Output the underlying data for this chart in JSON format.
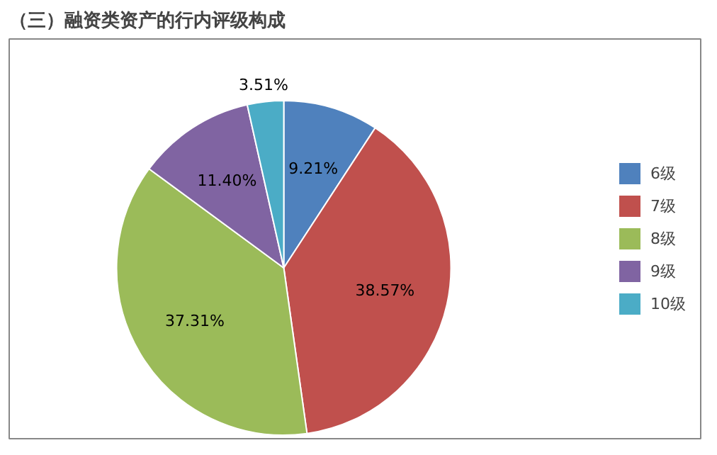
{
  "chart_data": {
    "type": "pie",
    "title": "（三）融资类资产的行内评级构成",
    "categories": [
      "6级",
      "7级",
      "8级",
      "9级",
      "10级"
    ],
    "values": [
      9.21,
      38.57,
      37.31,
      11.4,
      3.51
    ],
    "value_labels": [
      "9.21%",
      "38.57%",
      "37.31%",
      "11.40%",
      "3.51%"
    ],
    "colors": [
      "#4f81bd",
      "#c0504d",
      "#9bbb59",
      "#8064a2",
      "#4bacc6"
    ],
    "legend": "right"
  }
}
